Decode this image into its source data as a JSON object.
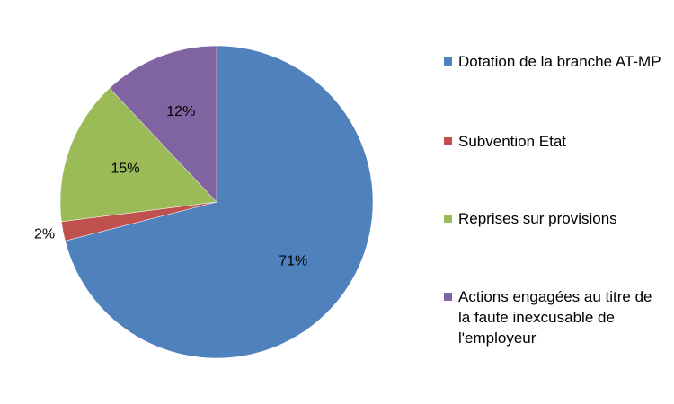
{
  "chart_data": {
    "type": "pie",
    "categories": [
      "Dotation de la branche AT-MP",
      "Subvention Etat",
      "Reprises sur provisions",
      "Actions engagées au titre de la faute inexcusable de l'employeur"
    ],
    "values": [
      71,
      2,
      15,
      12
    ],
    "value_labels": [
      "71%",
      "2%",
      "15%",
      "12%"
    ],
    "colors": [
      "#4f81bd",
      "#c0504d",
      "#9bbb59",
      "#8064a2"
    ],
    "legend": "right"
  }
}
